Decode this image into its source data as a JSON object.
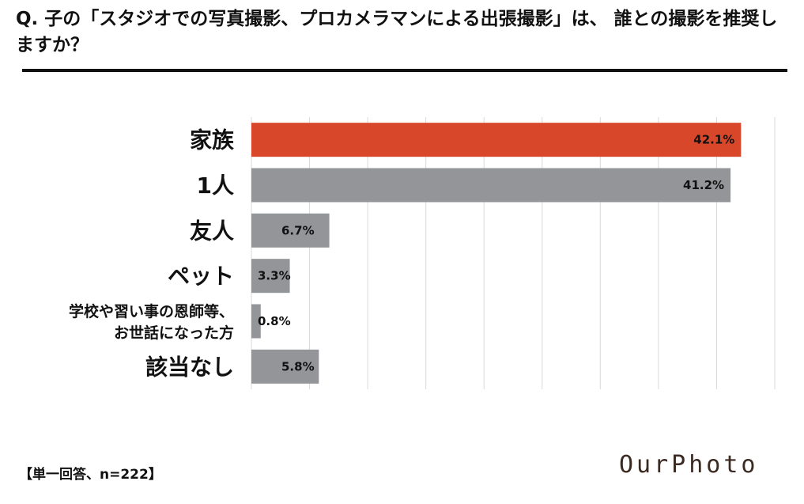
{
  "question": "Q. 子の「スタジオでの写真撮影、プロカメラマンによる出張撮影」は、 誰との撮影を推奨しますか？",
  "footnote": "【単一回答、n=222】",
  "logo": "OurPhoto",
  "colors": {
    "highlight": "#d9472a",
    "default": "#939599",
    "grid": "#d9d9d9"
  },
  "chart_data": {
    "type": "bar",
    "orientation": "horizontal",
    "categories": [
      "家族",
      "1人",
      "友人",
      "ペット",
      "学校や習い事の恩師等、お世話になった方",
      "該当なし"
    ],
    "category_lines": [
      [
        "家族"
      ],
      [
        "1人"
      ],
      [
        "友人"
      ],
      [
        "ペット"
      ],
      [
        "学校や習い事の恩師等、",
        "お世話になった方"
      ],
      [
        "該当なし"
      ]
    ],
    "values": [
      42.1,
      41.2,
      6.7,
      3.3,
      0.8,
      5.8
    ],
    "value_labels": [
      "42.1%",
      "41.2%",
      "6.7%",
      "3.3%",
      "0.8%",
      "5.8%"
    ],
    "highlight_index": 0,
    "xlim": [
      0,
      45
    ],
    "grid": true,
    "unit": "%"
  }
}
